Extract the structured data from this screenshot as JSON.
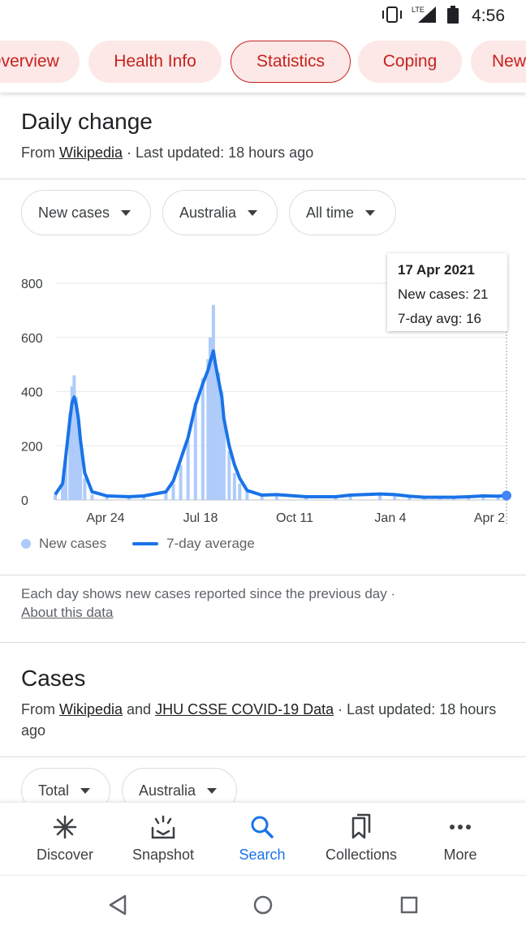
{
  "status_bar": {
    "network": "LTE",
    "time": "4:56"
  },
  "tabs": [
    {
      "label": "Overview",
      "active": false
    },
    {
      "label": "Health Info",
      "active": false
    },
    {
      "label": "Statistics",
      "active": true
    },
    {
      "label": "Coping",
      "active": false
    },
    {
      "label": "News",
      "active": false
    }
  ],
  "daily_change": {
    "title": "Daily change",
    "source_prefix": "From ",
    "source_link": "Wikipedia",
    "updated": " · Last updated: 18 hours ago",
    "filters": {
      "metric": "New cases",
      "region": "Australia",
      "range": "All time"
    },
    "tooltip": {
      "date": "17 Apr 2021",
      "new_cases": "New cases: 21",
      "avg": "7-day avg: 16"
    },
    "legend": {
      "bars": "New cases",
      "line": "7-day average"
    },
    "note": "Each day shows new cases reported since the previous day",
    "note_sep": " · ",
    "about_link": "About this data"
  },
  "cases": {
    "title": "Cases",
    "source_prefix": "From ",
    "source_link1": "Wikipedia",
    "source_and": " and ",
    "source_link2": "JHU CSSE COVID-19 Data",
    "updated": " · Last updated: 18 hours ago",
    "filters": {
      "metric": "Total",
      "region": "Australia"
    }
  },
  "bottom_nav": [
    {
      "label": "Discover",
      "icon": "asterisk-icon",
      "active": false
    },
    {
      "label": "Snapshot",
      "icon": "snapshot-icon",
      "active": false
    },
    {
      "label": "Search",
      "icon": "search-icon",
      "active": true
    },
    {
      "label": "Collections",
      "icon": "collections-icon",
      "active": false
    },
    {
      "label": "More",
      "icon": "more-dots-icon",
      "active": false
    }
  ],
  "colors": {
    "accent_red": "#c5221f",
    "tab_bg": "#fce8e6",
    "bar": "#aecbfa",
    "line": "#1a73e8"
  },
  "chart_data": {
    "type": "bar",
    "ylim": [
      0,
      800
    ],
    "yticks": [
      "0",
      "200",
      "400",
      "600",
      "800"
    ],
    "xticks": [
      "Apr 24",
      "Jul 18",
      "Oct 11",
      "Jan 4",
      "Apr 2"
    ],
    "series": [
      {
        "name": "New cases",
        "type": "bar"
      },
      {
        "name": "7-day average",
        "type": "line"
      }
    ],
    "x_dates": [
      0,
      7,
      10,
      14,
      16,
      18,
      20,
      22,
      24,
      28,
      35,
      49,
      70,
      84,
      105,
      112,
      119,
      126,
      133,
      140,
      145,
      147,
      150,
      152,
      155,
      158,
      160,
      165,
      170,
      175,
      182,
      196,
      210,
      238,
      266,
      280,
      308,
      322,
      336,
      350,
      365,
      378,
      392,
      406,
      420,
      427,
      428
    ],
    "new_cases": [
      20,
      60,
      160,
      320,
      420,
      460,
      380,
      300,
      200,
      80,
      20,
      15,
      10,
      15,
      30,
      60,
      130,
      220,
      360,
      450,
      520,
      600,
      720,
      500,
      470,
      400,
      300,
      180,
      100,
      60,
      30,
      15,
      20,
      10,
      15,
      20,
      25,
      20,
      15,
      10,
      12,
      10,
      15,
      20,
      15,
      20,
      21
    ],
    "avg": [
      20,
      60,
      160,
      300,
      360,
      380,
      350,
      300,
      220,
      100,
      30,
      15,
      12,
      15,
      30,
      70,
      150,
      230,
      350,
      430,
      480,
      510,
      550,
      500,
      440,
      380,
      300,
      200,
      130,
      80,
      35,
      18,
      20,
      12,
      12,
      18,
      22,
      20,
      14,
      10,
      10,
      10,
      12,
      15,
      14,
      16,
      16
    ],
    "selected_point": {
      "label": "17 Apr 2021",
      "new_cases": 21,
      "avg": 16
    }
  }
}
